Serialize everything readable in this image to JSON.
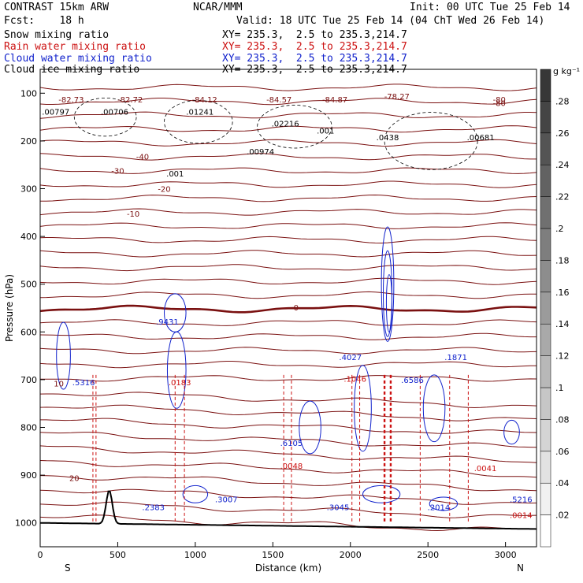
{
  "header": {
    "model": "CONTRAST 15km ARW",
    "forecast": "Fcst:    18 h",
    "center": "NCAR/MMM",
    "init": "Init: 00 UTC Tue 25 Feb 14",
    "valid": "Valid: 18 UTC Tue 25 Feb 14 (04 ChT Wed 26 Feb 14)"
  },
  "fields": [
    {
      "name": "Snow mixing ratio",
      "xy": "XY= 235.3,  2.5 to 235.3,214.7",
      "color": "#000000"
    },
    {
      "name": "Rain water mixing ratio",
      "xy": "XY= 235.3,  2.5 to 235.3,214.7",
      "color": "#cc1111"
    },
    {
      "name": "Cloud water mixing ratio",
      "xy": "XY= 235.3,  2.5 to 235.3,214.7",
      "color": "#1122cc"
    },
    {
      "name": "Cloud ice mixing ratio",
      "xy": "XY= 235.3,  2.5 to 235.3,214.7",
      "color": "#000000"
    }
  ],
  "chart_data": {
    "type": "cross-section",
    "xlabel": "Distance (km)",
    "ylabel": "Pressure (hPa)",
    "xlim": [
      0,
      3200
    ],
    "ylim": [
      1050,
      50
    ],
    "x_ticks": [
      "0",
      "500",
      "1000",
      "1500",
      "2000",
      "2500",
      "3000"
    ],
    "y_ticks": [
      "100",
      "200",
      "300",
      "400",
      "500",
      "600",
      "700",
      "800",
      "900",
      "1000"
    ],
    "left_end": "S",
    "right_end": "N",
    "colorbar": {
      "unit": "g kg⁻¹",
      "ticks": [
        ".02",
        ".04",
        ".06",
        ".08",
        ".1",
        ".12",
        ".14",
        ".16",
        ".18",
        ".2",
        ".22",
        ".24",
        ".26",
        ".28"
      ]
    },
    "temperature_labels": [
      "-80",
      "-40",
      "-30",
      "-20",
      "-10",
      "0",
      "10",
      "20"
    ],
    "annotations": [
      {
        "text": "-82.73",
        "x": 200,
        "p": 113,
        "color": "#7a1010"
      },
      {
        "text": "-82.72",
        "x": 580,
        "p": 113,
        "color": "#7a1010"
      },
      {
        "text": "-84.12",
        "x": 1060,
        "p": 113,
        "color": "#7a1010"
      },
      {
        "text": "-84.57",
        "x": 1540,
        "p": 113,
        "color": "#7a1010"
      },
      {
        "text": "-84.87",
        "x": 1900,
        "p": 113,
        "color": "#7a1010"
      },
      {
        "text": "-78.27",
        "x": 2300,
        "p": 106,
        "color": "#7a1010"
      },
      {
        "text": "-80",
        "x": 2960,
        "p": 113,
        "color": "#7a1010"
      },
      {
        "text": ".00797",
        "x": 100,
        "p": 138,
        "color": "#000000"
      },
      {
        "text": ".00706",
        "x": 480,
        "p": 138,
        "color": "#000000"
      },
      {
        "text": ".01241",
        "x": 1030,
        "p": 138,
        "color": "#000000"
      },
      {
        "text": ".02216",
        "x": 1580,
        "p": 163,
        "color": "#000000"
      },
      {
        "text": ".001",
        "x": 1840,
        "p": 178,
        "color": "#000000"
      },
      {
        "text": ".0438",
        "x": 2240,
        "p": 192,
        "color": "#000000"
      },
      {
        "text": ".00681",
        "x": 2840,
        "p": 192,
        "color": "#000000"
      },
      {
        "text": ".00974",
        "x": 1420,
        "p": 222,
        "color": "#000000"
      },
      {
        "text": ".001",
        "x": 870,
        "p": 268,
        "color": "#000000"
      },
      {
        "text": ".9431",
        "x": 820,
        "p": 578,
        "color": "#1122cc"
      },
      {
        "text": ".5316",
        "x": 280,
        "p": 705,
        "color": "#1122cc"
      },
      {
        "text": ".4027",
        "x": 2000,
        "p": 652,
        "color": "#1122cc"
      },
      {
        "text": ".6586",
        "x": 2400,
        "p": 700,
        "color": "#1122cc"
      },
      {
        "text": ".1871",
        "x": 2680,
        "p": 652,
        "color": "#1122cc"
      },
      {
        "text": ".6105",
        "x": 1620,
        "p": 832,
        "color": "#1122cc"
      },
      {
        "text": ".2383",
        "x": 730,
        "p": 967,
        "color": "#1122cc"
      },
      {
        "text": ".3007",
        "x": 1200,
        "p": 950,
        "color": "#1122cc"
      },
      {
        "text": ".3045",
        "x": 1920,
        "p": 967,
        "color": "#1122cc"
      },
      {
        "text": ".2014",
        "x": 2570,
        "p": 967,
        "color": "#1122cc"
      },
      {
        "text": ".5216",
        "x": 3100,
        "p": 950,
        "color": "#1122cc"
      },
      {
        "text": ".0183",
        "x": 900,
        "p": 705,
        "color": "#cc1111"
      },
      {
        "text": ".1046",
        "x": 2030,
        "p": 698,
        "color": "#cc1111"
      },
      {
        "text": ".0048",
        "x": 1620,
        "p": 880,
        "color": "#cc1111"
      },
      {
        "text": ".0041",
        "x": 2870,
        "p": 885,
        "color": "#cc1111"
      },
      {
        "text": ".0014",
        "x": 3100,
        "p": 983,
        "color": "#cc1111"
      }
    ]
  }
}
